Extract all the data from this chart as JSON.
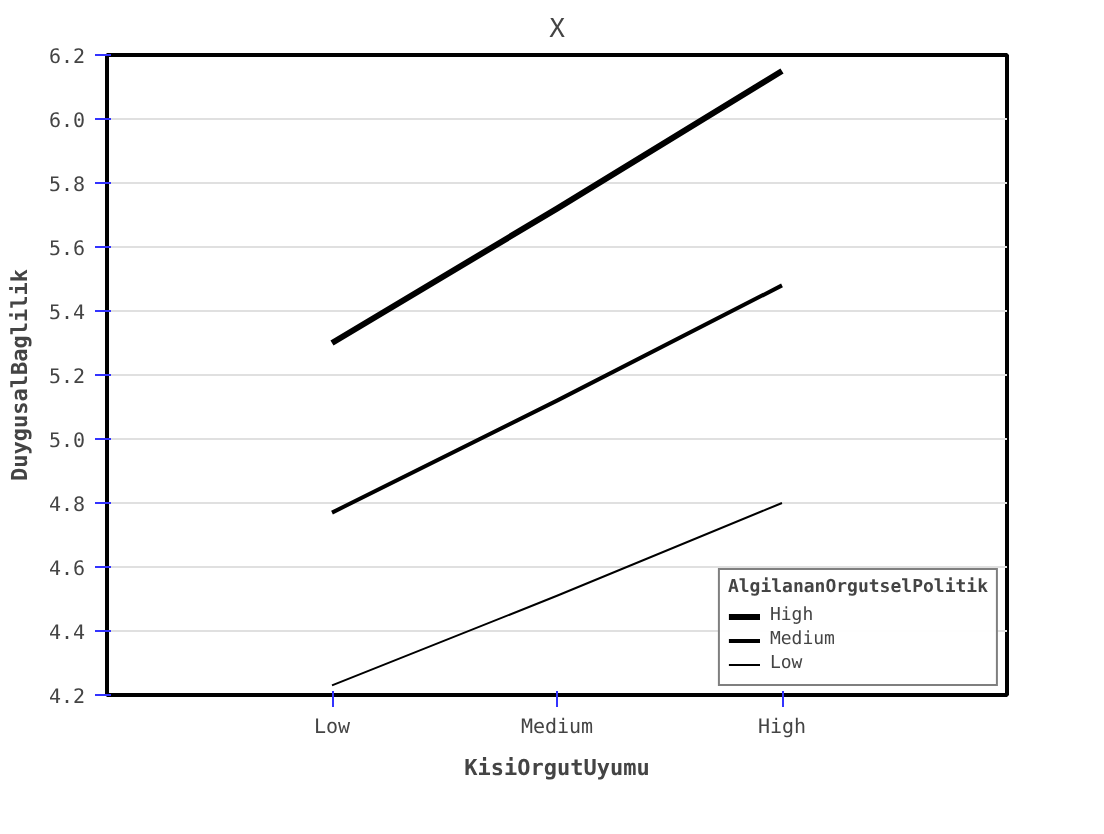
{
  "chart_data": {
    "type": "line",
    "title": "X",
    "xlabel": "KisiOrgutUyumu",
    "ylabel": "DuygusalBaglilik",
    "legend_title": "AlgilananOrgutselPolitik",
    "categories": [
      "Low",
      "Medium",
      "High"
    ],
    "series": [
      {
        "name": "High",
        "color": "#000000",
        "values": [
          5.3,
          5.72,
          6.15
        ]
      },
      {
        "name": "Medium",
        "color": "#000000",
        "values": [
          4.77,
          5.12,
          5.48
        ]
      },
      {
        "name": "Low",
        "color": "#000000",
        "values": [
          4.23,
          4.51,
          4.8
        ]
      }
    ],
    "ylim": [
      4.2,
      6.2
    ],
    "yticks": [
      4.2,
      4.4,
      4.6,
      4.8,
      {
        "value": 5,
        "label": "5.0"
      },
      5.2,
      5.4,
      5.6,
      5.8,
      {
        "value": 6,
        "label": "6.0"
      },
      6.2
    ],
    "grid": "y",
    "legend": "bottom right",
    "marker": "none",
    "line_style": "solid"
  }
}
